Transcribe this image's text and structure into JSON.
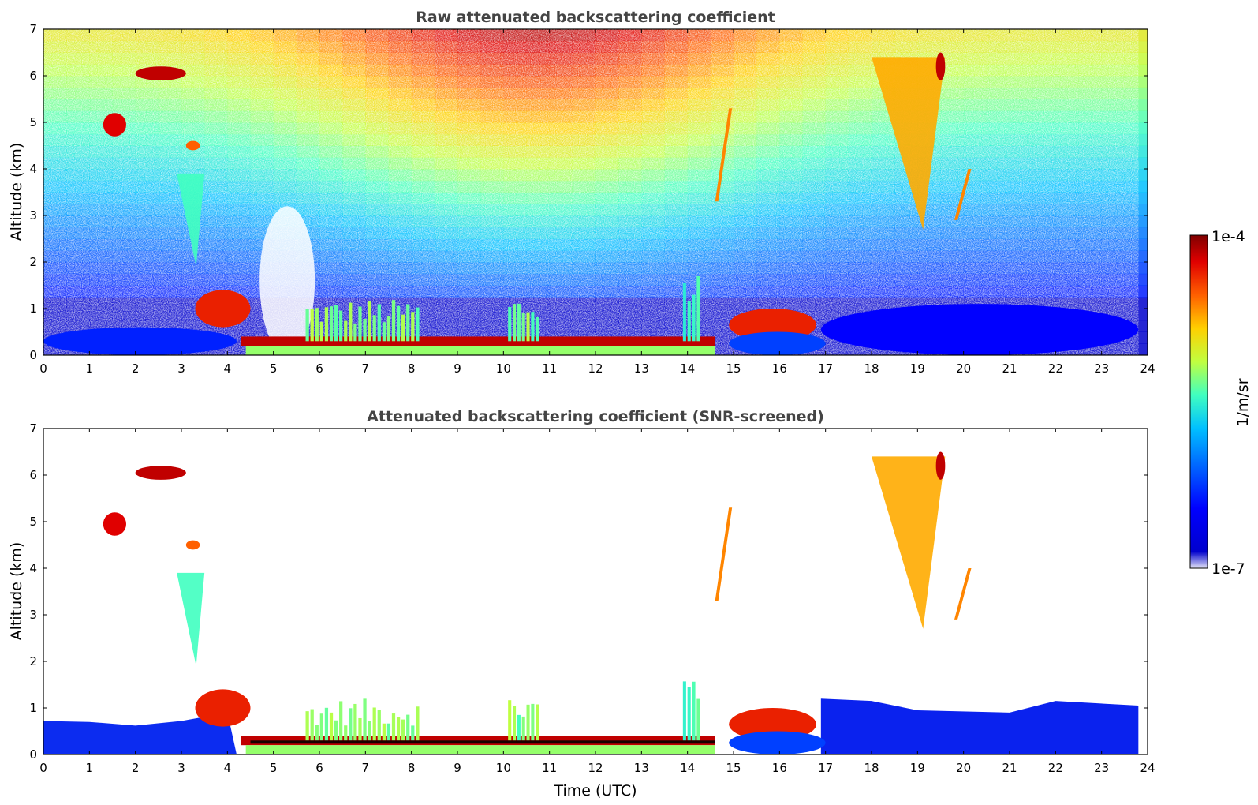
{
  "chart_data": [
    {
      "type": "heatmap",
      "title": "Raw attenuated backscattering coefficient",
      "xlabel": "",
      "ylabel": "Altitude (km)",
      "xlim": [
        0,
        24
      ],
      "ylim": [
        0,
        7
      ],
      "x_ticks": [
        "0",
        "1",
        "2",
        "3",
        "4",
        "5",
        "6",
        "7",
        "8",
        "9",
        "10",
        "11",
        "12",
        "13",
        "14",
        "15",
        "16",
        "17",
        "18",
        "19",
        "20",
        "21",
        "22",
        "23",
        "24"
      ],
      "y_ticks": [
        "0",
        "1",
        "2",
        "3",
        "4",
        "5",
        "6",
        "7"
      ],
      "colorscale": "jet (log10)",
      "regions": [
        {
          "x": [
            0.0,
            4.2
          ],
          "y": [
            0.0,
            0.6
          ],
          "log10": -6.3,
          "kind": "blob"
        },
        {
          "x": [
            3.3,
            4.5
          ],
          "y": [
            0.6,
            1.4
          ],
          "log10": -4.4,
          "kind": "blob"
        },
        {
          "x": [
            4.3,
            14.6
          ],
          "y": [
            0.2,
            0.4
          ],
          "log10": -4.2,
          "kind": "band"
        },
        {
          "x": [
            4.4,
            14.6
          ],
          "y": [
            0.0,
            0.2
          ],
          "log10": -5.3,
          "kind": "band"
        },
        {
          "x": [
            5.7,
            8.2
          ],
          "y": [
            0.3,
            1.2
          ],
          "log10": -5.5,
          "kind": "streaks"
        },
        {
          "x": [
            10.1,
            10.8
          ],
          "y": [
            0.3,
            1.3
          ],
          "log10": -5.5,
          "kind": "streaks"
        },
        {
          "x": [
            13.9,
            14.3
          ],
          "y": [
            0.3,
            1.9
          ],
          "log10": -5.6,
          "kind": "streaks"
        },
        {
          "x": [
            14.9,
            16.8
          ],
          "y": [
            0.3,
            1.0
          ],
          "log10": -4.4,
          "kind": "blob"
        },
        {
          "x": [
            14.9,
            17.0
          ],
          "y": [
            0.0,
            0.5
          ],
          "log10": -6.2,
          "kind": "blob"
        },
        {
          "x": [
            16.9,
            23.8
          ],
          "y": [
            0.0,
            1.1
          ],
          "log10": -6.4,
          "kind": "blob"
        },
        {
          "x": [
            2.0,
            3.1
          ],
          "y": [
            5.9,
            6.2
          ],
          "log10": -4.2,
          "kind": "blob"
        },
        {
          "x": [
            1.3,
            1.8
          ],
          "y": [
            4.7,
            5.2
          ],
          "log10": -4.3,
          "kind": "blob"
        },
        {
          "x": [
            3.1,
            3.4
          ],
          "y": [
            4.4,
            4.6
          ],
          "log10": -4.6,
          "kind": "blob"
        },
        {
          "x": [
            2.9,
            3.5
          ],
          "y": [
            1.9,
            3.9
          ],
          "log10": -5.5,
          "kind": "cone"
        },
        {
          "x": [
            14.6,
            14.9
          ],
          "y": [
            3.3,
            5.3
          ],
          "log10": -4.7,
          "kind": "streak"
        },
        {
          "x": [
            18.0,
            19.6
          ],
          "y": [
            2.7,
            6.4
          ],
          "log10": -4.8,
          "kind": "cone"
        },
        {
          "x": [
            19.4,
            19.6
          ],
          "y": [
            5.9,
            6.5
          ],
          "log10": -4.2,
          "kind": "blob"
        },
        {
          "x": [
            19.8,
            20.1
          ],
          "y": [
            2.9,
            4.0
          ],
          "log10": -4.7,
          "kind": "streak"
        }
      ]
    },
    {
      "type": "heatmap",
      "title": "Attenuated backscattering coefficient (SNR-screened)",
      "xlabel": "Time (UTC)",
      "ylabel": "Altitude (km)",
      "xlim": [
        0,
        24
      ],
      "ylim": [
        0,
        7
      ],
      "x_ticks": [
        "0",
        "1",
        "2",
        "3",
        "4",
        "5",
        "6",
        "7",
        "8",
        "9",
        "10",
        "11",
        "12",
        "13",
        "14",
        "15",
        "16",
        "17",
        "18",
        "19",
        "20",
        "21",
        "22",
        "23",
        "24"
      ],
      "y_ticks": [
        "0",
        "1",
        "2",
        "3",
        "4",
        "5",
        "6",
        "7"
      ],
      "colorscale": "jet (log10)"
    }
  ],
  "colorbar": {
    "label": "1/m/sr",
    "max_label": "1e-4",
    "min_label": "1e-7",
    "max_log10": -4,
    "min_log10": -7,
    "colors": [
      "#e8e8f8",
      "#0000cd",
      "#0000ff",
      "#0060ff",
      "#00c0ff",
      "#40ffc0",
      "#c0ff40",
      "#ffd000",
      "#ff6000",
      "#e00000",
      "#800000"
    ]
  }
}
